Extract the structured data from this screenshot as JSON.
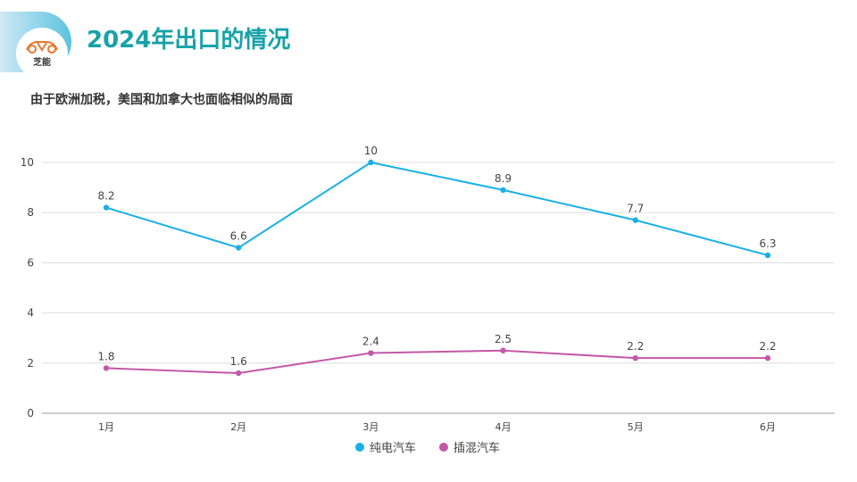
{
  "header": {
    "title": "2024年出口的情况",
    "logo_text": "芝能",
    "subtitle": "由于欧洲加税，美国和加拿大也面临相似的局面"
  },
  "colors": {
    "title": "#17a2a8",
    "series1": "#1ab0e6",
    "series2": "#c458a6"
  },
  "chart_data": {
    "type": "line",
    "categories": [
      "1月",
      "2月",
      "3月",
      "4月",
      "5月",
      "6月"
    ],
    "series": [
      {
        "name": "纯电汽车",
        "values": [
          8.2,
          6.6,
          10,
          8.9,
          7.7,
          6.3
        ],
        "labels": [
          "8.2",
          "6.6",
          "10",
          "8.9",
          "7.7",
          "6.3"
        ]
      },
      {
        "name": "插混汽车",
        "values": [
          1.8,
          1.6,
          2.4,
          2.5,
          2.2,
          2.2
        ],
        "labels": [
          "1.8",
          "1.6",
          "2.4",
          "2.5",
          "2.2",
          "2.2"
        ]
      }
    ],
    "yticks": [
      "0",
      "2",
      "4",
      "6",
      "8",
      "10"
    ],
    "ylim": [
      0,
      10
    ],
    "grid": true,
    "legend": "bottom-center"
  }
}
